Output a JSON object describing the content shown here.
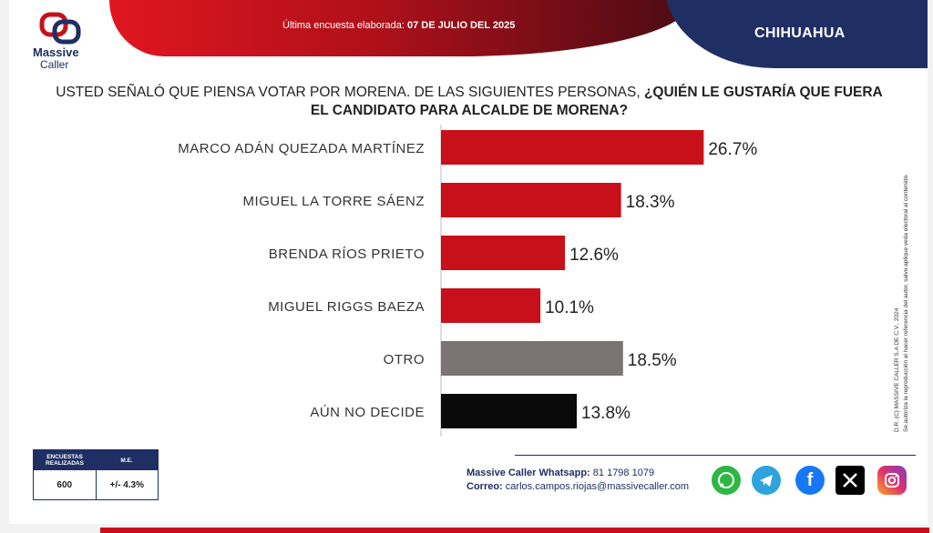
{
  "header": {
    "date_label": "Última encuesta elaborada:",
    "date_value": "07 DE JULIO DEL 2025",
    "state": "CHIHUAHUA",
    "logo_line1": "Massive",
    "logo_line2": "Caller"
  },
  "question": {
    "plain": "USTED SEÑALÓ QUE PIENSA VOTAR POR MORENA. DE LAS SIGUIENTES PERSONAS,",
    "bold": "¿QUIÉN LE GUSTARÍA QUE FUERA EL CANDIDATO PARA ALCALDE DE MORENA?"
  },
  "chart_data": {
    "type": "bar",
    "orientation": "horizontal",
    "categories": [
      "MARCO ADÁN QUEZADA MARTÍNEZ",
      "MIGUEL LA TORRE SÁENZ",
      "BRENDA RÍOS PRIETO",
      "MIGUEL RIGGS BAEZA",
      "OTRO",
      "AÚN NO DECIDE"
    ],
    "values": [
      26.7,
      18.3,
      12.6,
      10.1,
      18.5,
      13.8
    ],
    "value_labels": [
      "26.7%",
      "18.3%",
      "12.6%",
      "10.1%",
      "18.5%",
      "13.8%"
    ],
    "colors": [
      "#c8101a",
      "#c8101a",
      "#c8101a",
      "#c8101a",
      "#7a7474",
      "#0a0a0a"
    ],
    "grid": false
  },
  "side_note": {
    "line1": "D.R. (C) MASSIVE CALLER S.A DE C.V., 2024",
    "line2": "Se autoriza la reproducción al hacer referencia del autor, salvo aplique veda electoral al contenido."
  },
  "stats": {
    "col1_header": "ENCUESTAS REALIZADAS",
    "col2_header": "M.E.",
    "col1_value": "600",
    "col2_value": "+/- 4.3%"
  },
  "contact": {
    "whatsapp_label": "Massive Caller Whatsapp:",
    "whatsapp_value": "81 1798 1079",
    "email_label": "Correo:",
    "email_value": "carlos.campos.riojas@massivecaller.com"
  },
  "social_icons": [
    "whatsapp-icon",
    "telegram-icon",
    "facebook-icon",
    "x-icon",
    "instagram-icon"
  ],
  "colors": {
    "red": "#c8101a",
    "navy": "#1f2f63",
    "gray": "#7a7474",
    "black": "#0a0a0a"
  }
}
